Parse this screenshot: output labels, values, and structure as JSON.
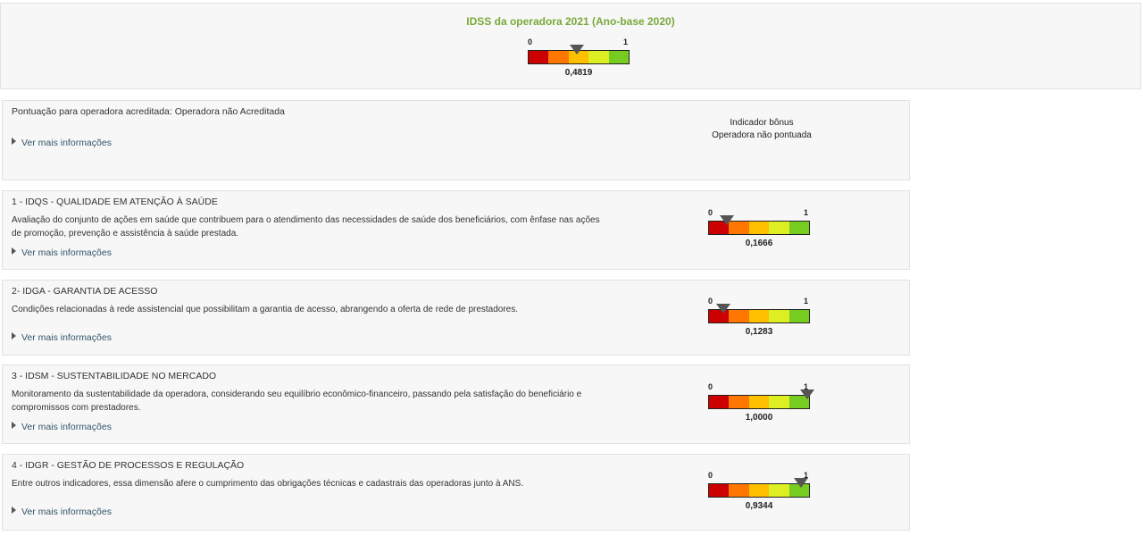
{
  "colors": {
    "title_green": "#7aa83a",
    "segments": [
      "#cc0000",
      "#ff7700",
      "#ffc000",
      "#ddee22",
      "#77cc22"
    ]
  },
  "header": {
    "title": "IDSS da operadora 2021 (Ano-base 2020)",
    "gauge": {
      "min_label": "0",
      "max_label": "1",
      "value": 0.4819,
      "value_label": "0,4819"
    }
  },
  "accreditation": {
    "text": "Pontuação para operadora acreditada: Operadora não Acreditada",
    "more_label": "Ver mais informações",
    "bonus_title": "Indicador bônus",
    "bonus_status": "Operadora não pontuada"
  },
  "dimensions": [
    {
      "title": "1 - IDQS - QUALIDADE EM ATENÇÃO À SAÚDE",
      "description": "Avaliação do conjunto de ações em saúde que contribuem para o atendimento das necessidades de saúde dos beneficiários, com ênfase nas ações de promoção, prevenção e assistência à saúde prestada.",
      "more_label": "Ver mais informações",
      "gauge": {
        "min_label": "0",
        "max_label": "1",
        "value": 0.1666,
        "value_label": "0,1666"
      }
    },
    {
      "title": "2- IDGA - GARANTIA DE ACESSO",
      "description": "Condições relacionadas à rede assistencial que possibilitam a garantia de acesso, abrangendo a oferta de rede de prestadores.",
      "more_label": "Ver mais informações",
      "gauge": {
        "min_label": "0",
        "max_label": "1",
        "value": 0.1283,
        "value_label": "0,1283"
      }
    },
    {
      "title": "3 - IDSM - SUSTENTABILIDADE NO MERCADO",
      "description": "Monitoramento da sustentabilidade da operadora, considerando seu equilíbrio econômico-financeiro, passando pela satisfação do beneficiário e compromissos com prestadores.",
      "more_label": "Ver mais informações",
      "gauge": {
        "min_label": "0",
        "max_label": "1",
        "value": 1.0,
        "value_label": "1,0000"
      }
    },
    {
      "title": "4 - IDGR - GESTÃO DE PROCESSOS E REGULAÇÃO",
      "description": "Entre outros indicadores, essa dimensão afere o cumprimento das obrigações técnicas e cadastrais das operadoras junto à ANS.",
      "more_label": "Ver mais informações",
      "gauge": {
        "min_label": "0",
        "max_label": "1",
        "value": 0.9344,
        "value_label": "0,9344"
      }
    }
  ]
}
